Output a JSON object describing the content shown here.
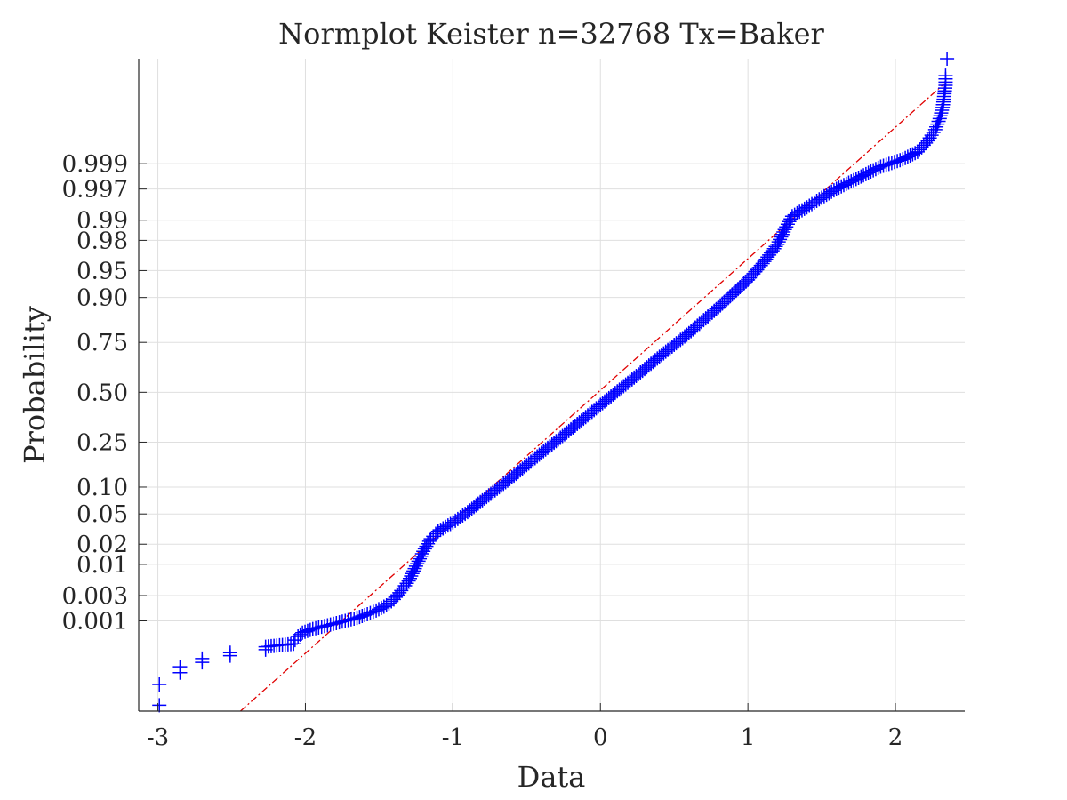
{
  "chart_data": {
    "type": "scatter",
    "title": "Normplot Keister n=32768 Tx=Baker",
    "xlabel": "Data",
    "ylabel": "Probability",
    "xlim": [
      -3.13,
      2.47
    ],
    "x_ticks": [
      -3,
      -2,
      -1,
      0,
      1,
      2
    ],
    "x_tick_labels": [
      "-3",
      "-2",
      "-1",
      "0",
      "1",
      "2"
    ],
    "y_scale": "normal-probability",
    "ylim_z": [
      -4.31,
      4.51
    ],
    "y_ticks": [
      0.001,
      0.003,
      0.01,
      0.02,
      0.05,
      0.1,
      0.25,
      0.5,
      0.75,
      0.9,
      0.95,
      0.98,
      0.99,
      0.997,
      0.999
    ],
    "y_tick_labels": [
      "0.001",
      "0.003",
      "0.01",
      "0.02",
      "0.05",
      "0.10",
      "0.25",
      "0.50",
      "0.75",
      "0.90",
      "0.95",
      "0.98",
      "0.99",
      "0.997",
      "0.999"
    ],
    "grid": true,
    "reference_line": {
      "color": "#e00000",
      "style": "dash-dot",
      "x": [
        -2.44,
        2.33
      ],
      "z": [
        -4.31,
        4.17
      ]
    },
    "series": [
      {
        "color": "#0000ff",
        "marker": "+",
        "points": [
          [
            -2.99,
            -4.23
          ],
          [
            -2.99,
            -3.95
          ],
          [
            -2.85,
            -3.79
          ],
          [
            -2.85,
            -3.71
          ],
          [
            -2.7,
            -3.65
          ],
          [
            -2.7,
            -3.6
          ],
          [
            -2.51,
            -3.56
          ],
          [
            -2.51,
            -3.52
          ],
          [
            -2.27,
            -3.48
          ],
          [
            -2.27,
            -3.44
          ],
          [
            -2.08,
            -3.4
          ],
          [
            -2.07,
            -3.35
          ],
          [
            -2.05,
            -3.3
          ],
          [
            -2.02,
            -3.25
          ],
          [
            -1.95,
            -3.2
          ],
          [
            -1.85,
            -3.15
          ],
          [
            -1.75,
            -3.1
          ],
          [
            -1.65,
            -3.05
          ],
          [
            -1.58,
            -3.0
          ],
          [
            -1.52,
            -2.95
          ],
          [
            -1.45,
            -2.88
          ],
          [
            -1.4,
            -2.8
          ],
          [
            -1.35,
            -2.68
          ],
          [
            -1.3,
            -2.55
          ],
          [
            -1.25,
            -2.35
          ],
          [
            -1.2,
            -2.15
          ],
          [
            -1.15,
            -1.98
          ],
          [
            -1.1,
            -1.88
          ],
          [
            -1.0,
            -1.76
          ],
          [
            -0.9,
            -1.62
          ],
          [
            -0.8,
            -1.46
          ],
          [
            -0.6,
            -1.15
          ],
          [
            -0.4,
            -0.82
          ],
          [
            -0.2,
            -0.5
          ],
          [
            0.0,
            -0.17
          ],
          [
            0.2,
            0.15
          ],
          [
            0.4,
            0.48
          ],
          [
            0.6,
            0.8
          ],
          [
            0.8,
            1.15
          ],
          [
            1.0,
            1.52
          ],
          [
            1.1,
            1.74
          ],
          [
            1.2,
            2.0
          ],
          [
            1.25,
            2.2
          ],
          [
            1.3,
            2.38
          ],
          [
            1.4,
            2.5
          ],
          [
            1.5,
            2.63
          ],
          [
            1.6,
            2.75
          ],
          [
            1.7,
            2.85
          ],
          [
            1.8,
            2.95
          ],
          [
            1.9,
            3.05
          ],
          [
            2.05,
            3.15
          ],
          [
            2.15,
            3.25
          ],
          [
            2.22,
            3.4
          ],
          [
            2.27,
            3.55
          ],
          [
            2.3,
            3.7
          ],
          [
            2.32,
            3.85
          ],
          [
            2.33,
            4.0
          ],
          [
            2.34,
            4.15
          ],
          [
            2.34,
            4.28
          ],
          [
            2.35,
            4.51
          ]
        ]
      }
    ]
  }
}
